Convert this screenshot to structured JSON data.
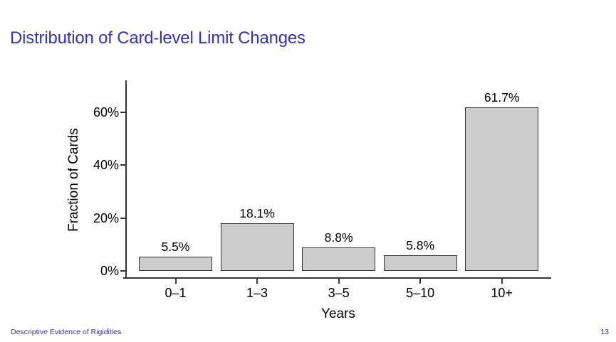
{
  "slide": {
    "title": "Distribution of Card-level Limit Changes",
    "footer_left": "Descriptive Evidence of Rigidities",
    "page_number": "13"
  },
  "colors": {
    "structure_blue": "#3333B3",
    "bar_fill": "#CCCCCC",
    "bar_border": "#333333",
    "axis": "#333333",
    "text": "#000000"
  },
  "chart_data": {
    "type": "bar",
    "title": "",
    "categories": [
      "0–1",
      "1–3",
      "3–5",
      "5–10",
      "10+"
    ],
    "values": [
      5.5,
      18.1,
      8.8,
      5.8,
      61.7
    ],
    "bar_labels": [
      "5.5%",
      "18.1%",
      "8.8%",
      "5.8%",
      "61.7%"
    ],
    "xlabel": "Years",
    "ylabel": "Fraction of Cards",
    "y_tick_labels": [
      "0%",
      "20%",
      "40%",
      "60%"
    ],
    "y_tick_values": [
      0,
      20,
      40,
      60
    ],
    "ylim": [
      0,
      75
    ],
    "grid": false,
    "legend": false,
    "bar_fill": "#CCCCCC",
    "bar_border": "#333333"
  }
}
